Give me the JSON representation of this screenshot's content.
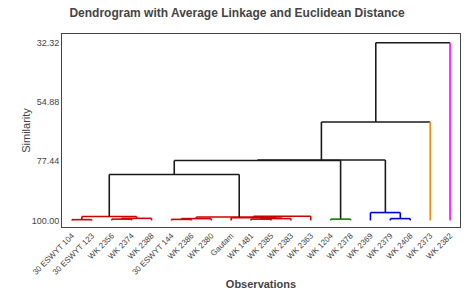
{
  "chart_data": {
    "type": "dendrogram",
    "title": "Dendrogram with Average Linkage and Euclidean Distance",
    "xlabel": "Observations",
    "ylabel": "Similarity",
    "categories": [
      "30 ESWYT 104",
      "30 ESWYT 123",
      "WK 2356",
      "WK 2374",
      "WK 2388",
      "30 ESWYT 144",
      "WK 2386",
      "WK 2380",
      "Gautam",
      "WK 1481",
      "WK 2385",
      "WK 2383",
      "WK 2363",
      "WK 1204",
      "WK 2378",
      "WK 2369",
      "WK 2379",
      "WK 2408",
      "WK 2373",
      "WK 2382"
    ],
    "leaf_colors": [
      "#cc0000",
      "#cc0000",
      "#cc0000",
      "#cc0000",
      "#cc0000",
      "#cc0000",
      "#cc0000",
      "#cc0000",
      "#cc0000",
      "#cc0000",
      "#cc0000",
      "#cc0000",
      "#cc0000",
      "#008800",
      "#008800",
      "#0000cc",
      "#0000cc",
      "#0000cc",
      "#ff8800",
      "#ff00ff"
    ],
    "leaf_height": 100.0,
    "merges": [
      {
        "left": "30 ESWYT 104",
        "right": "30 ESWYT 123",
        "height": 99.7,
        "color": "#cc0000"
      },
      {
        "left": "WK 2356",
        "right": "WK 2374",
        "height": 99.5,
        "color": "#cc0000"
      },
      {
        "left": 1,
        "right": "WK 2388",
        "height": 99.2,
        "color": "#cc0000"
      },
      {
        "left": 0,
        "right": 2,
        "height": 98.5,
        "color": "#cc0000"
      },
      {
        "left": "30 ESWYT 144",
        "right": "WK 2386",
        "height": 99.6,
        "color": "#cc0000"
      },
      {
        "left": 4,
        "right": "WK 2380",
        "height": 99.3,
        "color": "#cc0000"
      },
      {
        "left": "WK 1481",
        "right": "WK 2385",
        "height": 99.5,
        "color": "#cc0000"
      },
      {
        "left": 6,
        "right": "WK 2383",
        "height": 99.3,
        "color": "#cc0000"
      },
      {
        "left": "Gautam",
        "right": 7,
        "height": 99.0,
        "color": "#cc0000"
      },
      {
        "left": 8,
        "right": "WK 2363",
        "height": 98.4,
        "color": "#cc0000"
      },
      {
        "left": 5,
        "right": 9,
        "height": 98.7,
        "color": "#cc0000"
      },
      {
        "left": 3,
        "right": 10,
        "height": 82.5,
        "color": "#1a1a1a"
      },
      {
        "left": "WK 1204",
        "right": "WK 2378",
        "height": 99.5,
        "color": "#008800"
      },
      {
        "left": "WK 2379",
        "right": "WK 2408",
        "height": 99.3,
        "color": "#0000cc"
      },
      {
        "left": "WK 2369",
        "right": 13,
        "height": 97.0,
        "color": "#0000cc"
      },
      {
        "left": 11,
        "right": 12,
        "height": 77.2,
        "color": "#1a1a1a"
      },
      {
        "left": 15,
        "right": 14,
        "height": 77.0,
        "color": "#1a1a1a"
      },
      {
        "left": 16,
        "right": "WK 2373",
        "height": 62.5,
        "color": "#1a1a1a"
      },
      {
        "left": 17,
        "right": "WK 2382",
        "height": 32.32,
        "color": "#1a1a1a"
      }
    ],
    "ylim": [
      102.5,
      29.0
    ],
    "yticks": [
      32.32,
      54.88,
      77.44,
      {
        "value": 100.0,
        "label": "100.00"
      }
    ],
    "grid": false
  }
}
